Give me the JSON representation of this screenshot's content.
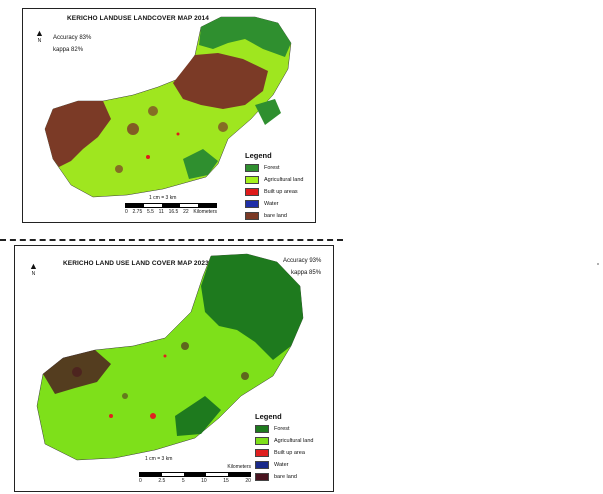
{
  "maps": [
    {
      "title": "KERICHO LANDUSE LANDCOVER MAP 2014",
      "accuracy": "Accuracy 83%",
      "kappa": "kappa 82%",
      "north": "N",
      "legend_title": "Legend",
      "legend": [
        {
          "label": "Forest",
          "color": "#2f8f2f"
        },
        {
          "label": "Agricultural land",
          "color": "#a6f21c"
        },
        {
          "label": "Built up areas",
          "color": "#e01b1b"
        },
        {
          "label": "Water",
          "color": "#1f2fa8"
        },
        {
          "label": "bare land",
          "color": "#7b3a26"
        }
      ],
      "scale_label": "1 cm = 3 km",
      "scale_ticks": [
        "0",
        "2.75",
        "5.5",
        "11",
        "16.5",
        "22"
      ],
      "scale_unit": "Kilometers"
    },
    {
      "title": "KERICHO LAND USE LAND COVER MAP 2023",
      "accuracy": "Accuracy 93%",
      "kappa": "kappa 85%",
      "north": "N",
      "legend_title": "Legend",
      "legend": [
        {
          "label": "Forest",
          "color": "#1e7a1e"
        },
        {
          "label": "Agricultural land",
          "color": "#7ee01a"
        },
        {
          "label": "Built up area",
          "color": "#e02020"
        },
        {
          "label": "Water",
          "color": "#1a2a8a"
        },
        {
          "label": "bare land",
          "color": "#4a1420"
        }
      ],
      "scale_label": "1 cm = 3 km",
      "scale_ticks": [
        "0",
        "2.5",
        "5",
        "10",
        "15",
        "20"
      ],
      "scale_unit": "Kilometers"
    }
  ]
}
